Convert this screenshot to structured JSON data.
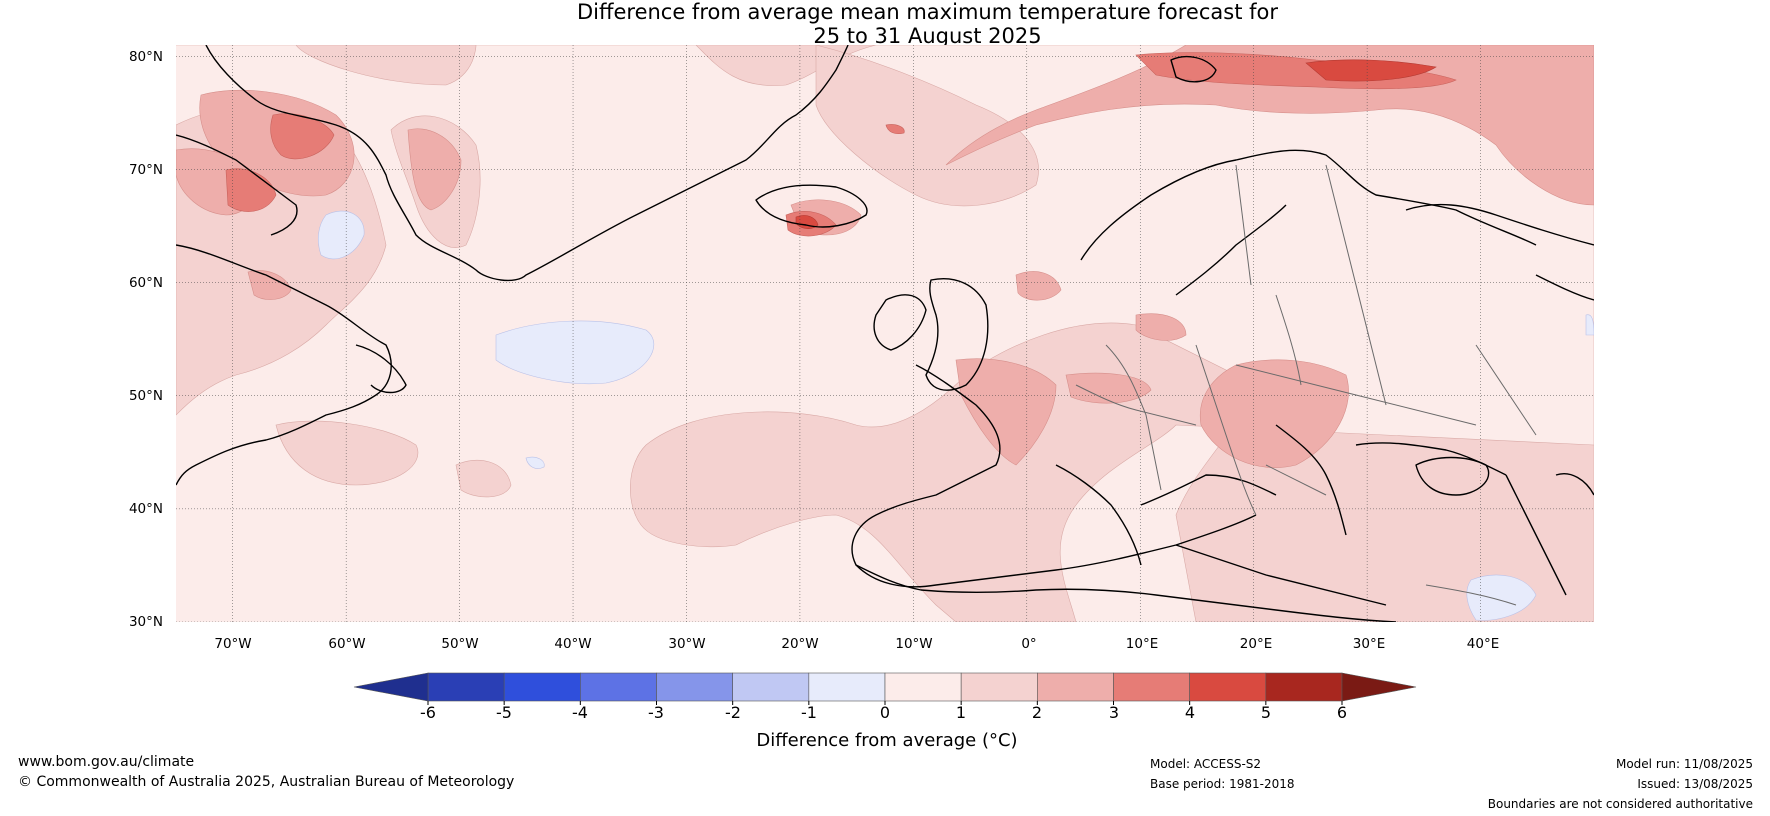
{
  "title": {
    "line1": "Difference from average mean maximum temperature forecast for",
    "line2": "25 to 31 August 2025"
  },
  "map": {
    "latitude_labels": [
      "80°N",
      "70°N",
      "60°N",
      "50°N",
      "40°N",
      "30°N"
    ],
    "longitude_labels": [
      "70°W",
      "60°W",
      "50°W",
      "40°W",
      "30°W",
      "20°W",
      "10°W",
      "0°",
      "10°E",
      "20°E",
      "30°E",
      "40°E"
    ],
    "latitude_values": [
      80,
      70,
      60,
      50,
      40,
      30
    ],
    "longitude_values": [
      -70,
      -60,
      -50,
      -40,
      -30,
      -20,
      -10,
      0,
      10,
      20,
      30,
      40
    ],
    "extent": {
      "lon_min": -75,
      "lon_max": 50,
      "lat_min": 30,
      "lat_max": 81
    }
  },
  "colorbar": {
    "label": "Difference from average (°C)",
    "ticks": [
      "-6",
      "-5",
      "-4",
      "-3",
      "-2",
      "-1",
      "0",
      "1",
      "2",
      "3",
      "4",
      "5",
      "6"
    ],
    "bins": [
      {
        "from": -6,
        "to": -5,
        "color": "#2a3fb5"
      },
      {
        "from": -5,
        "to": -4,
        "color": "#2f4fdc"
      },
      {
        "from": -4,
        "to": -3,
        "color": "#5d72e5"
      },
      {
        "from": -3,
        "to": -2,
        "color": "#8595ea"
      },
      {
        "from": -2,
        "to": -1,
        "color": "#c0c8f3"
      },
      {
        "from": -1,
        "to": 0,
        "color": "#e7ebfb"
      },
      {
        "from": 0,
        "to": 1,
        "color": "#fcecea"
      },
      {
        "from": 1,
        "to": 2,
        "color": "#f4d2d0"
      },
      {
        "from": 2,
        "to": 3,
        "color": "#eeaeab"
      },
      {
        "from": 3,
        "to": 4,
        "color": "#e67c76"
      },
      {
        "from": 4,
        "to": 5,
        "color": "#d94a40"
      },
      {
        "from": 5,
        "to": 6,
        "color": "#a8271f"
      }
    ],
    "under_color": "#1f2f8f",
    "over_color": "#7a1a14"
  },
  "footer": {
    "website": "www.bom.gov.au/climate",
    "copyright": "© Commonwealth of Australia 2025, Australian Bureau of Meteorology",
    "model": "Model: ACCESS-S2",
    "base_period": "Base period: 1981-2018",
    "model_run": "Model run: 11/08/2025",
    "issued": "Issued: 13/08/2025",
    "disclaimer": "Boundaries are not considered authoritative"
  }
}
